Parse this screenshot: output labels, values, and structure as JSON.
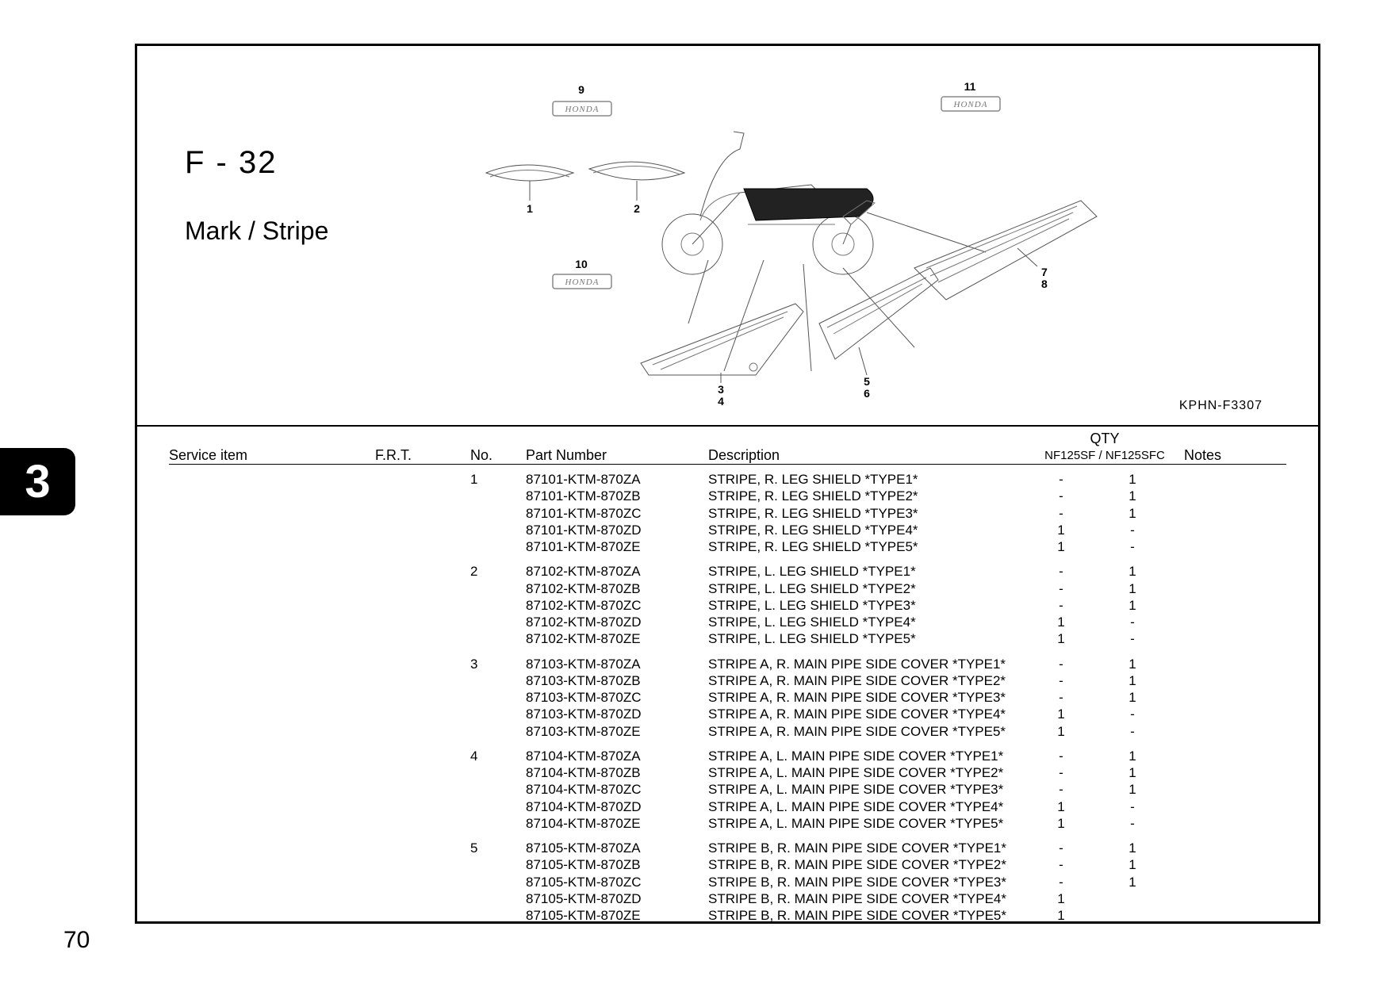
{
  "section_code": "F - 32",
  "section_title": "Mark / Stripe",
  "diagram_code": "KPHN-F3307",
  "tab_number": "3",
  "page_number": "70",
  "diagram": {
    "callouts": [
      "1",
      "2",
      "3",
      "4",
      "5",
      "6",
      "7",
      "8",
      "9",
      "10",
      "11"
    ],
    "logo_text": "HONDA"
  },
  "table": {
    "headers": {
      "service": "Service item",
      "frt": "F.R.T.",
      "no": "No.",
      "part": "Part Number",
      "desc": "Description",
      "qty": "QTY",
      "qty_sub": "NF125SF / NF125SFC",
      "notes": "Notes"
    },
    "groups": [
      {
        "no": "1",
        "rows": [
          {
            "part": "87101-KTM-870ZA",
            "desc": "STRIPE, R. LEG SHIELD *TYPE1*",
            "q1": "-",
            "q2": "1"
          },
          {
            "part": "87101-KTM-870ZB",
            "desc": "STRIPE, R. LEG SHIELD *TYPE2*",
            "q1": "-",
            "q2": "1"
          },
          {
            "part": "87101-KTM-870ZC",
            "desc": "STRIPE, R. LEG SHIELD *TYPE3*",
            "q1": "-",
            "q2": "1"
          },
          {
            "part": "87101-KTM-870ZD",
            "desc": "STRIPE, R. LEG SHIELD *TYPE4*",
            "q1": "1",
            "q2": "-"
          },
          {
            "part": "87101-KTM-870ZE",
            "desc": "STRIPE, R. LEG SHIELD *TYPE5*",
            "q1": "1",
            "q2": "-"
          }
        ]
      },
      {
        "no": "2",
        "rows": [
          {
            "part": "87102-KTM-870ZA",
            "desc": "STRIPE, L. LEG SHIELD *TYPE1*",
            "q1": "-",
            "q2": "1"
          },
          {
            "part": "87102-KTM-870ZB",
            "desc": "STRIPE, L. LEG SHIELD *TYPE2*",
            "q1": "-",
            "q2": "1"
          },
          {
            "part": "87102-KTM-870ZC",
            "desc": "STRIPE, L. LEG SHIELD *TYPE3*",
            "q1": "-",
            "q2": "1"
          },
          {
            "part": "87102-KTM-870ZD",
            "desc": "STRIPE, L. LEG SHIELD *TYPE4*",
            "q1": "1",
            "q2": "-"
          },
          {
            "part": "87102-KTM-870ZE",
            "desc": "STRIPE, L. LEG SHIELD *TYPE5*",
            "q1": "1",
            "q2": "-"
          }
        ]
      },
      {
        "no": "3",
        "rows": [
          {
            "part": "87103-KTM-870ZA",
            "desc": "STRIPE A, R. MAIN PIPE SIDE COVER *TYPE1*",
            "q1": "-",
            "q2": "1"
          },
          {
            "part": "87103-KTM-870ZB",
            "desc": "STRIPE A, R. MAIN PIPE SIDE COVER *TYPE2*",
            "q1": "-",
            "q2": "1"
          },
          {
            "part": "87103-KTM-870ZC",
            "desc": "STRIPE A, R. MAIN PIPE SIDE COVER *TYPE3*",
            "q1": "-",
            "q2": "1"
          },
          {
            "part": "87103-KTM-870ZD",
            "desc": "STRIPE A, R. MAIN PIPE SIDE COVER *TYPE4*",
            "q1": "1",
            "q2": "-"
          },
          {
            "part": "87103-KTM-870ZE",
            "desc": "STRIPE A, R. MAIN PIPE SIDE COVER *TYPE5*",
            "q1": "1",
            "q2": "-"
          }
        ]
      },
      {
        "no": "4",
        "rows": [
          {
            "part": "87104-KTM-870ZA",
            "desc": "STRIPE A, L. MAIN PIPE SIDE COVER *TYPE1*",
            "q1": "-",
            "q2": "1"
          },
          {
            "part": "87104-KTM-870ZB",
            "desc": "STRIPE A, L. MAIN PIPE SIDE COVER *TYPE2*",
            "q1": "-",
            "q2": "1"
          },
          {
            "part": "87104-KTM-870ZC",
            "desc": "STRIPE A, L. MAIN PIPE SIDE COVER *TYPE3*",
            "q1": "-",
            "q2": "1"
          },
          {
            "part": "87104-KTM-870ZD",
            "desc": "STRIPE A, L. MAIN PIPE SIDE COVER *TYPE4*",
            "q1": "1",
            "q2": "-"
          },
          {
            "part": "87104-KTM-870ZE",
            "desc": "STRIPE A, L. MAIN PIPE SIDE COVER *TYPE5*",
            "q1": "1",
            "q2": "-"
          }
        ]
      },
      {
        "no": "5",
        "rows": [
          {
            "part": "87105-KTM-870ZA",
            "desc": "STRIPE B, R. MAIN PIPE SIDE COVER *TYPE1*",
            "q1": "-",
            "q2": "1"
          },
          {
            "part": "87105-KTM-870ZB",
            "desc": "STRIPE B, R. MAIN PIPE SIDE COVER *TYPE2*",
            "q1": "-",
            "q2": "1"
          },
          {
            "part": "87105-KTM-870ZC",
            "desc": "STRIPE B, R. MAIN PIPE SIDE COVER *TYPE3*",
            "q1": "-",
            "q2": "1"
          },
          {
            "part": "87105-KTM-870ZD",
            "desc": "STRIPE B, R. MAIN PIPE SIDE COVER *TYPE4*",
            "q1": "1",
            "q2": ""
          },
          {
            "part": "87105-KTM-870ZE",
            "desc": "STRIPE B, R. MAIN PIPE SIDE COVER *TYPE5*",
            "q1": "1",
            "q2": ""
          }
        ]
      }
    ]
  }
}
